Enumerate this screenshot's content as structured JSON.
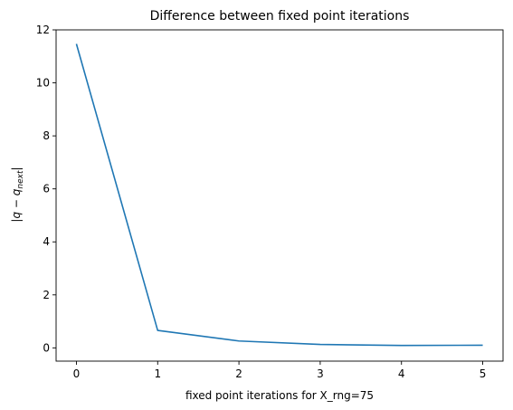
{
  "chart_data": {
    "type": "line",
    "title": "Difference between fixed point iterations",
    "xlabel": "fixed point iterations for X_rng=75",
    "ylabel": "|q − q_next|",
    "ylabel_main": "|q − q",
    "ylabel_sub": "next",
    "ylabel_end": "|",
    "xlim": [
      -0.25,
      5.25
    ],
    "ylim": [
      -0.5,
      12.0
    ],
    "xticks": [
      0,
      1,
      2,
      3,
      4,
      5
    ],
    "yticks": [
      0,
      2,
      4,
      6,
      8,
      10,
      12
    ],
    "grid": false,
    "series": [
      {
        "color": "#1f77b4",
        "x": [
          0,
          1,
          2,
          3,
          4,
          5
        ],
        "y": [
          11.47,
          0.66,
          0.26,
          0.13,
          0.09,
          0.1
        ]
      }
    ]
  }
}
